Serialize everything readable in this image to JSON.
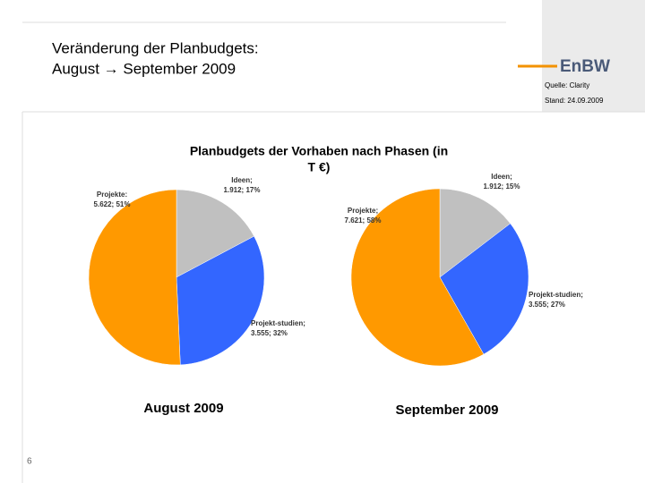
{
  "slide": {
    "header": [
      "Veränderung der Planbudgets:",
      "August → September 2009"
    ],
    "logo": "EnBW",
    "source": "Quelle: Clarity",
    "date": "Stand: 24.09.2009",
    "chart_title": [
      "Planbudgets der Vorhaben nach Phasen (in",
      "T €)"
    ],
    "page": "6"
  },
  "chart_data": [
    {
      "type": "pie",
      "title": "August 2009",
      "categories": [
        "Ideen;",
        "Projekt-studien;",
        "Projekte:"
      ],
      "values": [
        1912,
        3555,
        5622
      ],
      "value_labels": [
        "1.912; 17%",
        "3.555; 32%",
        "5.622; 51%"
      ],
      "colors": [
        "#c0c0c0",
        "#3366ff",
        "#ff9900"
      ]
    },
    {
      "type": "pie",
      "title": "September 2009",
      "categories": [
        "Ideen;",
        "Projekt-studien;",
        "Projekte;"
      ],
      "values": [
        1912,
        3555,
        7621
      ],
      "value_labels": [
        "1.912; 15%",
        "3.555; 27%",
        "7.621; 58%"
      ],
      "colors": [
        "#c0c0c0",
        "#3366ff",
        "#ff9900"
      ]
    }
  ]
}
